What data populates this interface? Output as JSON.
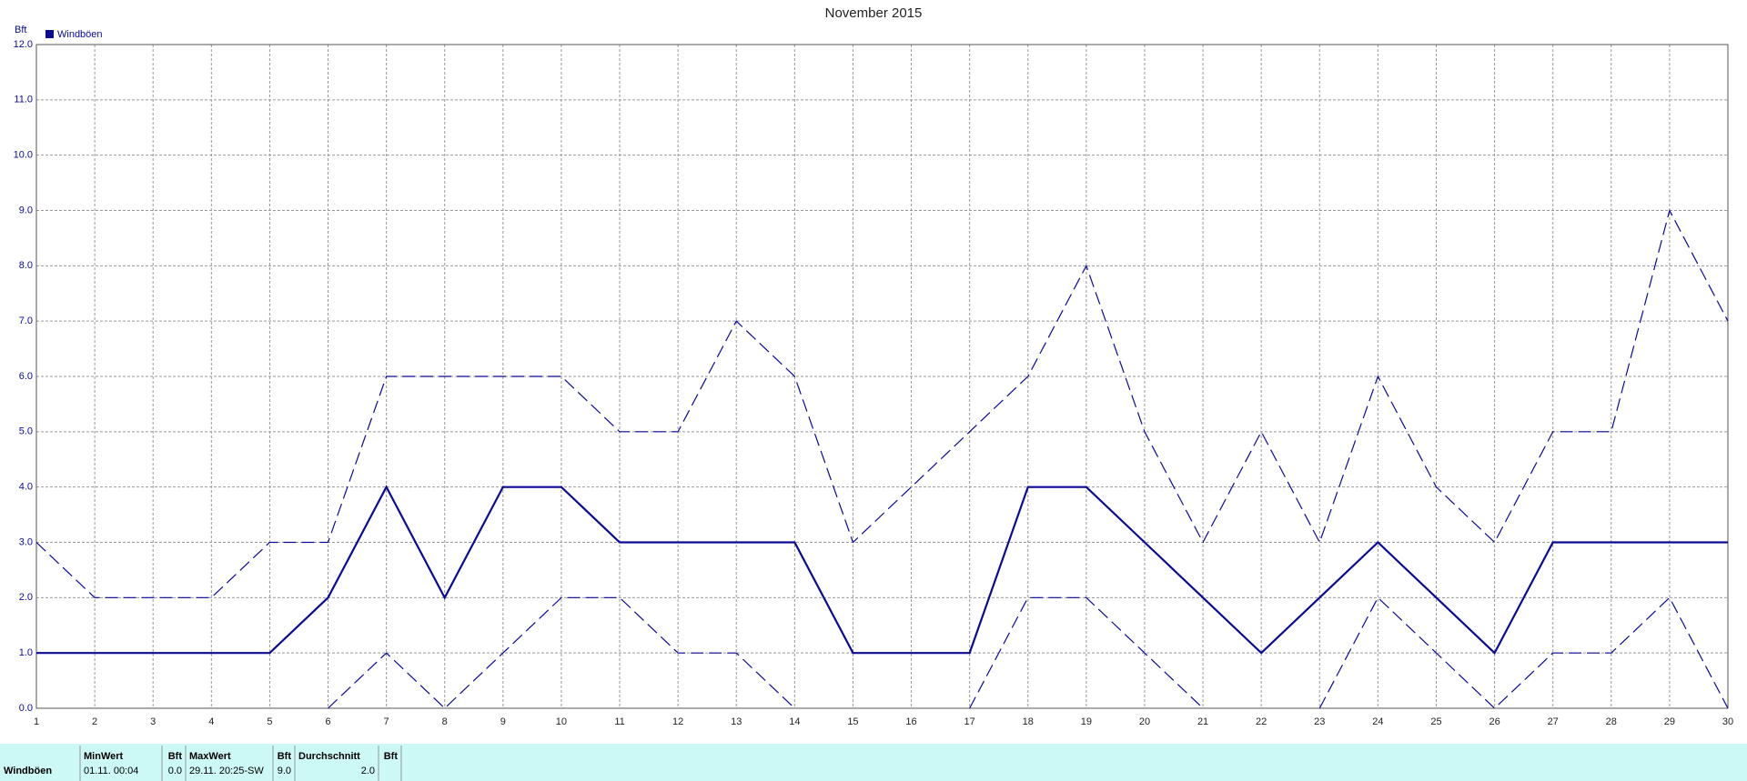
{
  "chart_data": {
    "type": "line",
    "title": "November 2015",
    "ylabel": "Bft",
    "x": [
      1,
      2,
      3,
      4,
      5,
      6,
      7,
      8,
      9,
      10,
      11,
      12,
      13,
      14,
      15,
      16,
      17,
      18,
      19,
      20,
      21,
      22,
      23,
      24,
      25,
      26,
      27,
      28,
      29,
      30
    ],
    "series": [
      {
        "name": "Windböen",
        "color": "#0a0a96",
        "dash": false,
        "values": [
          1,
          1,
          1,
          1,
          1,
          2,
          4,
          2,
          4,
          4,
          3,
          3,
          3,
          3,
          1,
          1,
          1,
          4,
          4,
          3,
          2,
          1,
          2,
          3,
          2,
          1,
          3,
          3,
          3,
          3
        ]
      },
      {
        "color": "#0a0a96",
        "dash": true,
        "values": [
          3,
          2,
          2,
          2,
          3,
          3,
          6,
          6,
          6,
          6,
          5,
          5,
          7,
          6,
          3,
          4,
          5,
          6,
          8,
          5,
          3,
          5,
          3,
          6,
          4,
          3,
          5,
          5,
          9,
          7
        ]
      },
      {
        "color": "#0a0a96",
        "dash": true,
        "values": [
          null,
          null,
          null,
          null,
          null,
          0,
          1,
          0,
          1,
          2,
          2,
          1,
          1,
          0,
          null,
          null,
          0,
          2,
          2,
          1,
          0,
          null,
          0,
          2,
          1,
          0,
          1,
          1,
          2,
          0
        ]
      }
    ],
    "xlim": [
      1,
      30
    ],
    "xticks": [
      1,
      2,
      3,
      4,
      5,
      6,
      7,
      8,
      9,
      10,
      11,
      12,
      13,
      14,
      15,
      16,
      17,
      18,
      19,
      20,
      21,
      22,
      23,
      24,
      25,
      26,
      27,
      28,
      29,
      30
    ],
    "ylim": [
      0,
      12
    ],
    "yticks": [
      {
        "value": 0,
        "label": "0.0"
      },
      {
        "value": 1,
        "label": "1.0"
      },
      {
        "value": 2,
        "label": "2.0"
      },
      {
        "value": 3,
        "label": "3.0"
      },
      {
        "value": 4,
        "label": "4.0"
      },
      {
        "value": 5,
        "label": "5.0"
      },
      {
        "value": 6,
        "label": "6.0"
      },
      {
        "value": 7,
        "label": "7.0"
      },
      {
        "value": 8,
        "label": "8.0"
      },
      {
        "value": 9,
        "label": "9.0"
      },
      {
        "value": 10,
        "label": "10.0"
      },
      {
        "value": 11,
        "label": "11.0"
      },
      {
        "value": 12,
        "label": "12.0"
      }
    ],
    "grid": true,
    "legend": "top-left"
  },
  "table": {
    "header": [
      "MinWert",
      "Bft",
      "MaxWert",
      "Bft",
      "Durchschnitt",
      "Bft"
    ],
    "rows": [
      [
        "Windböen",
        "01.11.  00:04",
        "0.0",
        "29.11.  20:25-SW",
        "9.0",
        "2.0"
      ]
    ]
  }
}
